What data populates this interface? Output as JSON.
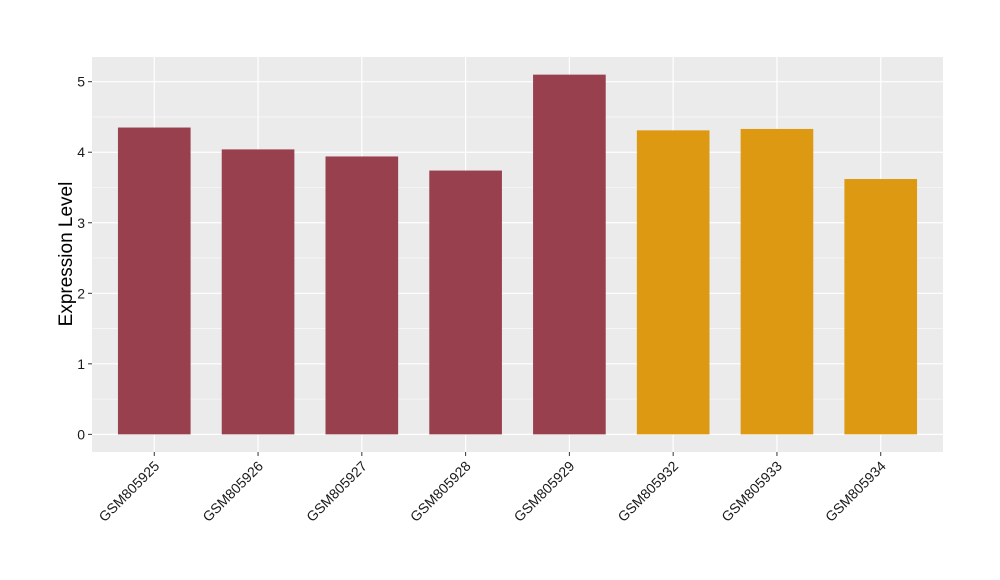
{
  "chart_data": {
    "type": "bar",
    "title": "",
    "xlabel": "",
    "ylabel": "Expression Level",
    "categories": [
      "GSM805925",
      "GSM805926",
      "GSM805927",
      "GSM805928",
      "GSM805929",
      "GSM805932",
      "GSM805933",
      "GSM805934"
    ],
    "values": [
      4.35,
      4.04,
      3.94,
      3.74,
      5.1,
      4.31,
      4.33,
      3.62
    ],
    "bar_colors": [
      "#99404f",
      "#99404f",
      "#99404f",
      "#99404f",
      "#99404f",
      "#de9913",
      "#de9913",
      "#de9913"
    ],
    "ylim": [
      -0.25,
      5.35
    ],
    "yticks": [
      0,
      1,
      2,
      3,
      4,
      5
    ],
    "grid": true,
    "panel_background": "#ebebeb",
    "legend": "none"
  }
}
